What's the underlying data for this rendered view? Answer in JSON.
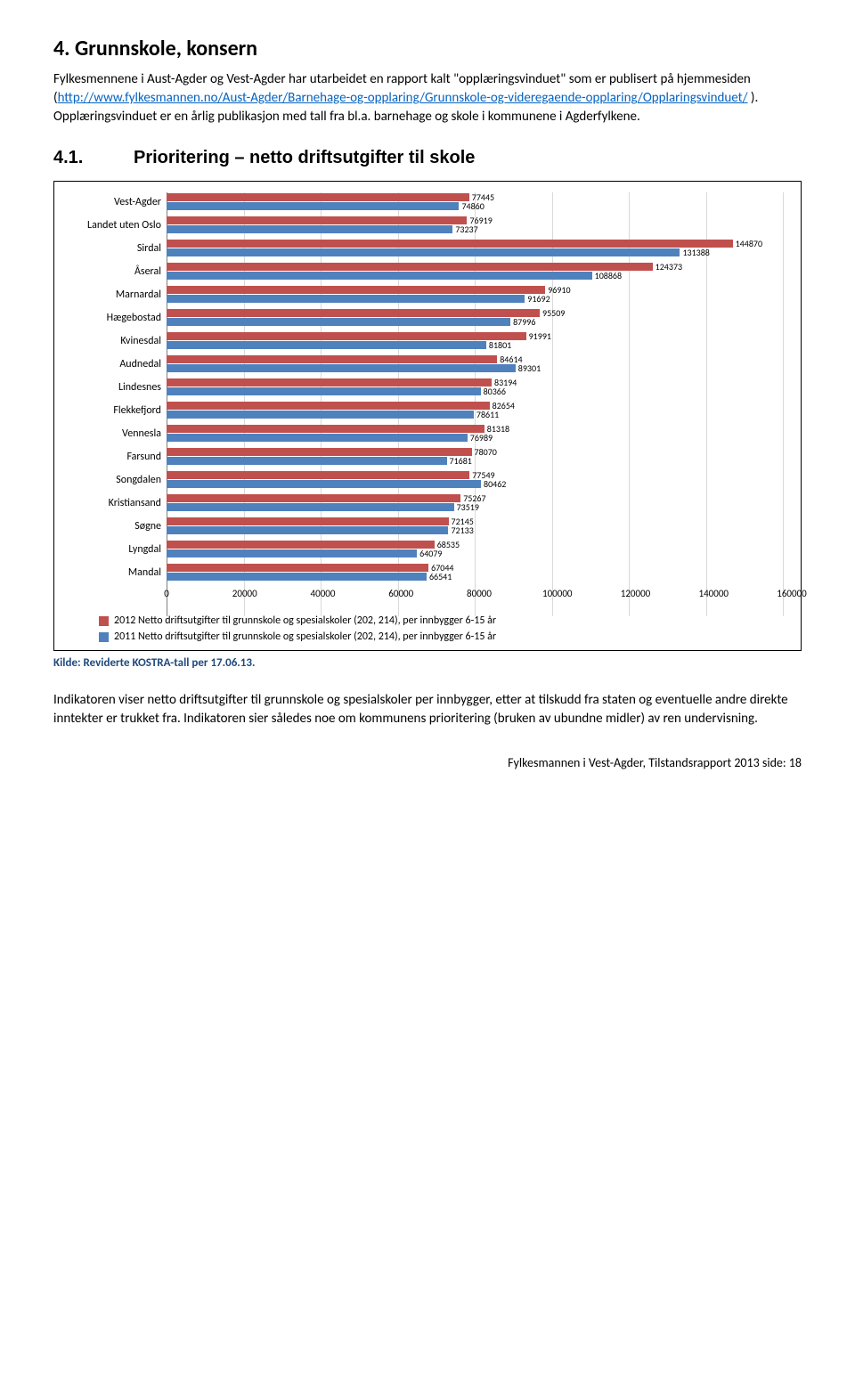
{
  "heading": "4. Grunnskole, konsern",
  "intro_parts": {
    "p1a": "Fylkesmennene i Aust-Agder og Vest-Agder har utarbeidet en rapport kalt \"opplæringsvinduet\" som er publisert på hjemmesiden (",
    "link1": "http://www.fylkesmannen.no/Aust-Agder/Barnehage-og-opplaring/Grunnskole-og-videregaende-opplaring/Opplaringsvinduet/",
    "p1b": " ). Opplæringsvinduet er en årlig publikasjon med tall fra bl.a. barnehage og skole i kommunene i Agderfylkene."
  },
  "section_number": "4.1.",
  "section_title": "Prioritering – netto driftsutgifter til skole",
  "chart": {
    "type": "bar",
    "orientation": "horizontal",
    "xlim": [
      0,
      160000
    ],
    "xtick_step": 20000,
    "xticks": [
      0,
      20000,
      40000,
      60000,
      80000,
      100000,
      120000,
      140000,
      160000
    ],
    "bar_colors": [
      "#c0504d",
      "#4f81bd"
    ],
    "grid_color": "#d9d9d9",
    "label_fontsize": 12,
    "value_fontsize": 10,
    "series_labels": [
      "2012 Netto driftsutgifter til grunnskole og spesialskoler (202, 214), per innbygger 6-15 år",
      "2011 Netto driftsutgifter til grunnskole og spesialskoler (202, 214), per innbygger 6-15 år"
    ],
    "categories": [
      {
        "name": "Vest-Agder",
        "values": [
          77445,
          74860
        ]
      },
      {
        "name": "Landet uten Oslo",
        "values": [
          76919,
          73237
        ]
      },
      {
        "name": "Sirdal",
        "values": [
          144870,
          131388
        ]
      },
      {
        "name": "Åseral",
        "values": [
          124373,
          108868
        ]
      },
      {
        "name": "Marnardal",
        "values": [
          96910,
          91692
        ]
      },
      {
        "name": "Hægebostad",
        "values": [
          95509,
          87996
        ]
      },
      {
        "name": "Kvinesdal",
        "values": [
          91991,
          81801
        ]
      },
      {
        "name": "Audnedal",
        "values": [
          84614,
          89301
        ]
      },
      {
        "name": "Lindesnes",
        "values": [
          83194,
          80366
        ]
      },
      {
        "name": "Flekkefjord",
        "values": [
          82654,
          78611
        ]
      },
      {
        "name": "Vennesla",
        "values": [
          81318,
          76989
        ]
      },
      {
        "name": "Farsund",
        "values": [
          78070,
          71681
        ]
      },
      {
        "name": "Songdalen",
        "values": [
          77549,
          80462
        ]
      },
      {
        "name": "Kristiansand",
        "values": [
          75267,
          73519
        ]
      },
      {
        "name": "Søgne",
        "values": [
          72145,
          72133
        ]
      },
      {
        "name": "Lyngdal",
        "values": [
          68535,
          64079
        ]
      },
      {
        "name": "Mandal",
        "values": [
          67044,
          66541
        ]
      }
    ]
  },
  "source": "Kilde: Reviderte KOSTRA-tall per 17.06.13.",
  "indicator_text": "Indikatoren viser netto driftsutgifter til grunnskole og spesialskoler per innbygger, etter at tilskudd fra staten og eventuelle andre direkte inntekter er trukket fra. Indikatoren sier således noe om kommunens prioritering (bruken av ubundne midler) av ren undervisning.",
  "footer": "Fylkesmannen i Vest-Agder, Tilstandsrapport 2013   side:    18"
}
